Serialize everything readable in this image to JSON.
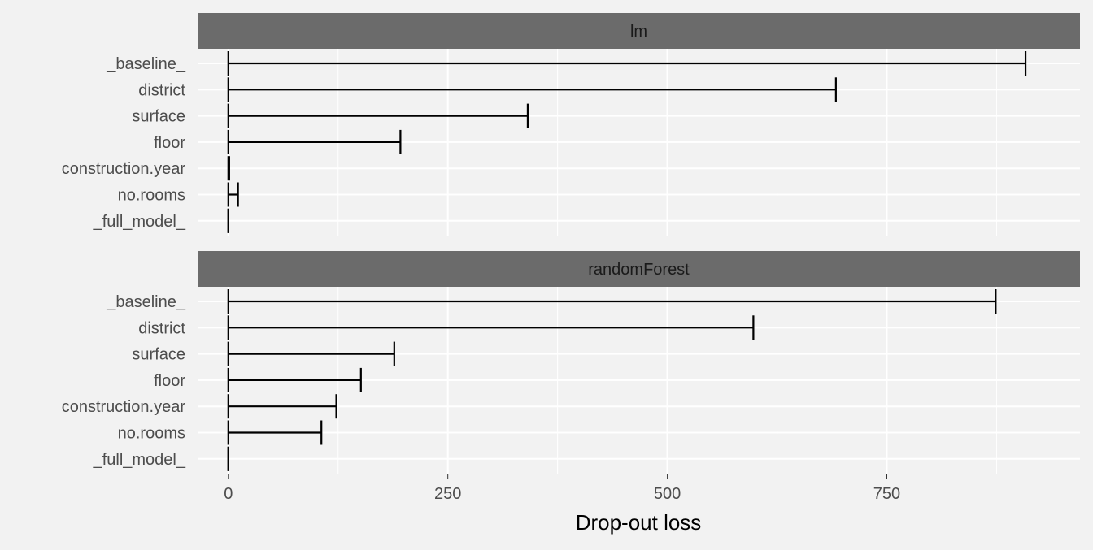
{
  "chart_data": {
    "type": "bar",
    "xlabel": "Drop-out loss",
    "ylabel": "",
    "xlim": [
      -35,
      970
    ],
    "x_ticks": [
      0,
      250,
      500,
      750
    ],
    "x_tick_labels": [
      "0",
      "250",
      "500",
      "750"
    ],
    "x_minor_ticks": [
      125,
      375,
      625,
      875
    ],
    "grid": true,
    "categories": [
      "_baseline_",
      "district",
      "surface",
      "floor",
      "construction.year",
      "no.rooms",
      "_full_model_"
    ],
    "panels": [
      {
        "name": "lm",
        "values": [
          908,
          692,
          341,
          196,
          1,
          11,
          0
        ]
      },
      {
        "name": "randomForest",
        "values": [
          874,
          598,
          189,
          151,
          123,
          106,
          0
        ]
      }
    ],
    "colors": {
      "background": "#f2f2f2",
      "strip": "#6b6b6b",
      "grid": "#ffffff",
      "segment": "#000000"
    }
  }
}
